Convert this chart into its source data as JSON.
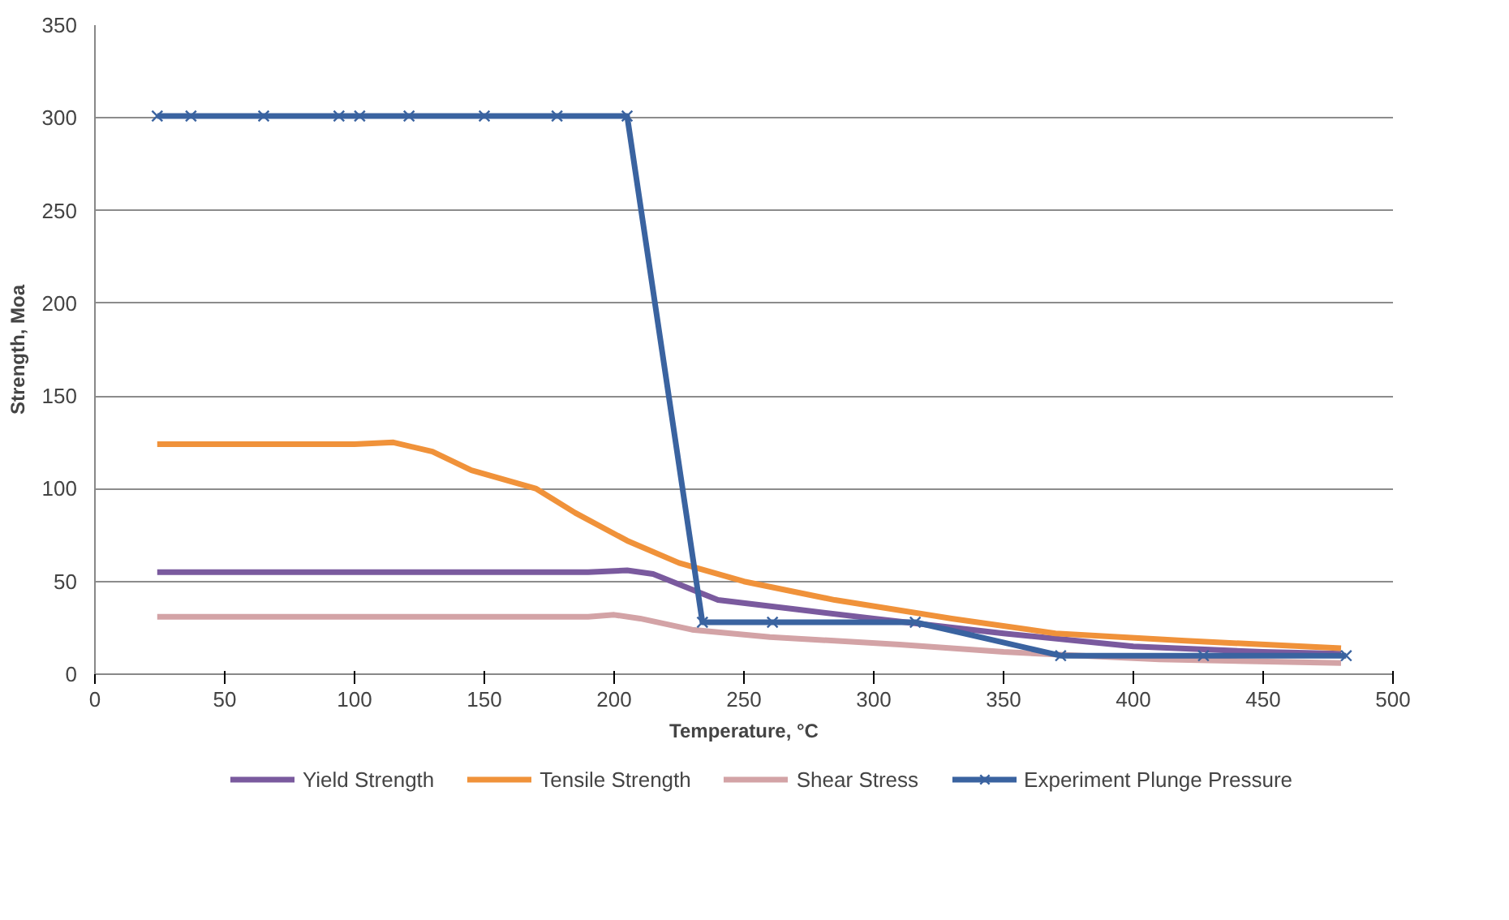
{
  "chart_data": {
    "type": "line",
    "xlabel": "Temperature, °C",
    "ylabel": "Strength, Moa",
    "xlim": [
      0,
      500
    ],
    "ylim": [
      0,
      350
    ],
    "xticks": [
      0,
      50,
      100,
      150,
      200,
      250,
      300,
      350,
      400,
      450,
      500
    ],
    "yticks": [
      0,
      50,
      100,
      150,
      200,
      250,
      300,
      350
    ],
    "grid": "y",
    "legend": "bottom",
    "series": [
      {
        "name": "Yield Strength",
        "color": "#7a5a9e",
        "marker": "none",
        "x": [
          24,
          100,
          190,
          205,
          215,
          240,
          270,
          300,
          350,
          400,
          450,
          480
        ],
        "values": [
          55,
          55,
          55,
          56,
          54,
          40,
          35,
          30,
          22,
          15,
          12,
          11
        ]
      },
      {
        "name": "Tensile Strength",
        "color": "#f0923a",
        "marker": "none",
        "x": [
          24,
          100,
          115,
          130,
          145,
          170,
          185,
          205,
          225,
          250,
          285,
          330,
          370,
          420,
          480
        ],
        "values": [
          124,
          124,
          125,
          120,
          110,
          100,
          87,
          72,
          60,
          50,
          40,
          30,
          22,
          18,
          14
        ]
      },
      {
        "name": "Shear Stress",
        "color": "#d3a3a6",
        "marker": "none",
        "x": [
          24,
          190,
          200,
          210,
          230,
          260,
          310,
          350,
          410,
          480
        ],
        "values": [
          31,
          31,
          32,
          30,
          24,
          20,
          16,
          12,
          8,
          6
        ]
      },
      {
        "name": "Experiment Plunge Pressure",
        "color": "#3a63a0",
        "marker": "cross",
        "x": [
          24,
          37,
          65,
          94,
          102,
          121,
          150,
          178,
          205,
          234,
          261,
          316,
          372,
          427,
          482
        ],
        "values": [
          301,
          301,
          301,
          301,
          301,
          301,
          301,
          301,
          301,
          28,
          28,
          28,
          10,
          10,
          10
        ]
      }
    ]
  }
}
